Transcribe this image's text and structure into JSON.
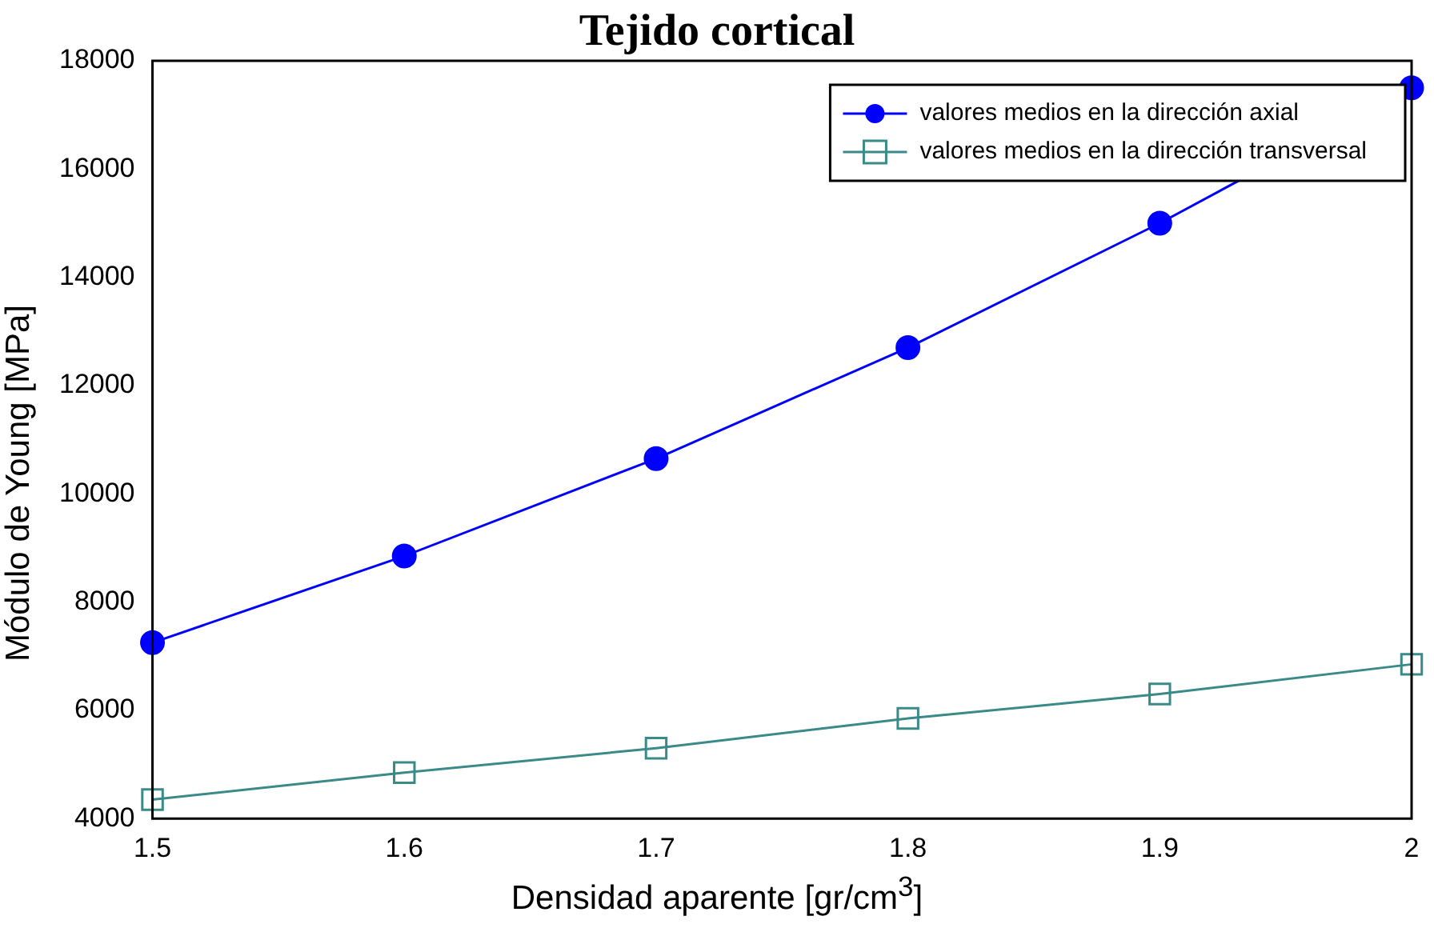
{
  "chart_data": {
    "type": "line",
    "title": "Tejido cortical",
    "xlabel": "Densidad aparente [gr/cm$^{3}$]",
    "ylabel": "Módulo de Young [MPa]",
    "x": [
      1.5,
      1.6,
      1.7,
      1.8,
      1.9,
      2
    ],
    "series": [
      {
        "name": "valores medios en la dirección axial",
        "color": "#0000ff",
        "marker": "circle",
        "values": [
          7250,
          8850,
          10650,
          12700,
          15000,
          17500
        ]
      },
      {
        "name": "valores medios en la dirección transversal",
        "color": "#3a8a88",
        "marker": "square",
        "values": [
          4350,
          4850,
          5300,
          5850,
          6300,
          6850
        ]
      }
    ],
    "xlim": [
      1.5,
      2
    ],
    "xticks": [
      1.5,
      1.6,
      1.7,
      1.8,
      1.9,
      2
    ],
    "ylim": [
      4000,
      18000
    ],
    "yticks": [
      4000,
      6000,
      8000,
      10000,
      12000,
      14000,
      16000,
      18000
    ],
    "grid": false,
    "legend": "top right",
    "line_style": "solid"
  }
}
